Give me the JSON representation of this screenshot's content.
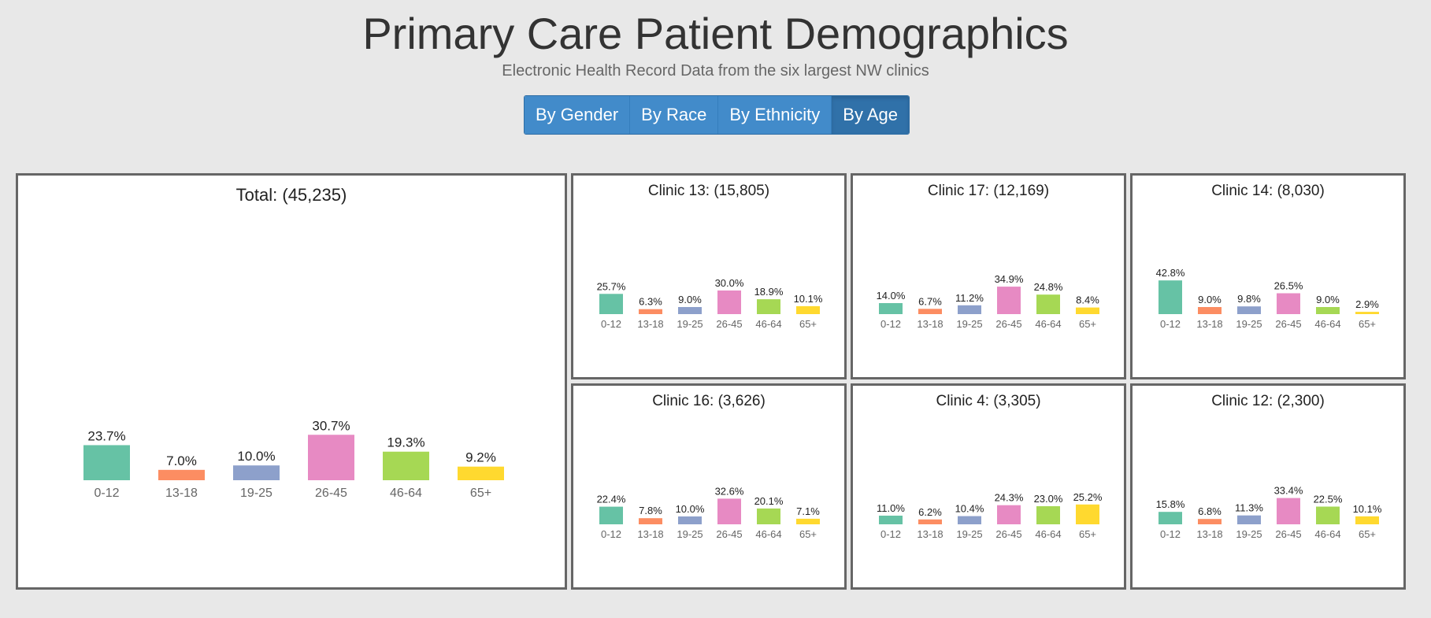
{
  "header": {
    "title": "Primary Care Patient Demographics",
    "subtitle": "Electronic Health Record Data from the six largest NW clinics"
  },
  "tabs": [
    {
      "label": "By Gender",
      "active": false
    },
    {
      "label": "By Race",
      "active": false
    },
    {
      "label": "By Ethnicity",
      "active": false
    },
    {
      "label": "By Age",
      "active": true
    }
  ],
  "colors": {
    "0-12": "#66c2a5",
    "13-18": "#fc8d62",
    "19-25": "#8da0cb",
    "26-45": "#e78ac3",
    "46-64": "#a6d854",
    "65+": "#ffd92f"
  },
  "chart_data": [
    {
      "type": "bar",
      "title": "Total: (45,235)",
      "categories": [
        "0-12",
        "13-18",
        "19-25",
        "26-45",
        "46-64",
        "65+"
      ],
      "values": [
        23.7,
        7.0,
        10.0,
        30.7,
        19.3,
        9.2
      ],
      "labels": [
        "23.7%",
        "7.0%",
        "10.0%",
        "30.7%",
        "19.3%",
        "9.2%"
      ]
    },
    {
      "type": "bar",
      "title": "Clinic 13: (15,805)",
      "categories": [
        "0-12",
        "13-18",
        "19-25",
        "26-45",
        "46-64",
        "65+"
      ],
      "values": [
        25.7,
        6.3,
        9.0,
        30.0,
        18.9,
        10.1
      ],
      "labels": [
        "25.7%",
        "6.3%",
        "9.0%",
        "30.0%",
        "18.9%",
        "10.1%"
      ]
    },
    {
      "type": "bar",
      "title": "Clinic 17: (12,169)",
      "categories": [
        "0-12",
        "13-18",
        "19-25",
        "26-45",
        "46-64",
        "65+"
      ],
      "values": [
        14.0,
        6.7,
        11.2,
        34.9,
        24.8,
        8.4
      ],
      "labels": [
        "14.0%",
        "6.7%",
        "11.2%",
        "34.9%",
        "24.8%",
        "8.4%"
      ]
    },
    {
      "type": "bar",
      "title": "Clinic 14: (8,030)",
      "categories": [
        "0-12",
        "13-18",
        "19-25",
        "26-45",
        "46-64",
        "65+"
      ],
      "values": [
        42.8,
        9.0,
        9.8,
        26.5,
        9.0,
        2.9
      ],
      "labels": [
        "42.8%",
        "9.0%",
        "9.8%",
        "26.5%",
        "9.0%",
        "2.9%"
      ]
    },
    {
      "type": "bar",
      "title": "Clinic 16: (3,626)",
      "categories": [
        "0-12",
        "13-18",
        "19-25",
        "26-45",
        "46-64",
        "65+"
      ],
      "values": [
        22.4,
        7.8,
        10.0,
        32.6,
        20.1,
        7.1
      ],
      "labels": [
        "22.4%",
        "7.8%",
        "10.0%",
        "32.6%",
        "20.1%",
        "7.1%"
      ]
    },
    {
      "type": "bar",
      "title": "Clinic 4: (3,305)",
      "categories": [
        "0-12",
        "13-18",
        "19-25",
        "26-45",
        "46-64",
        "65+"
      ],
      "values": [
        11.0,
        6.2,
        10.4,
        24.3,
        23.0,
        25.2
      ],
      "labels": [
        "11.0%",
        "6.2%",
        "10.4%",
        "24.3%",
        "23.0%",
        "25.2%"
      ]
    },
    {
      "type": "bar",
      "title": "Clinic 12: (2,300)",
      "categories": [
        "0-12",
        "13-18",
        "19-25",
        "26-45",
        "46-64",
        "65+"
      ],
      "values": [
        15.8,
        6.8,
        11.3,
        33.4,
        22.5,
        10.1
      ],
      "labels": [
        "15.8%",
        "6.8%",
        "11.3%",
        "33.4%",
        "22.5%",
        "10.1%"
      ]
    }
  ]
}
